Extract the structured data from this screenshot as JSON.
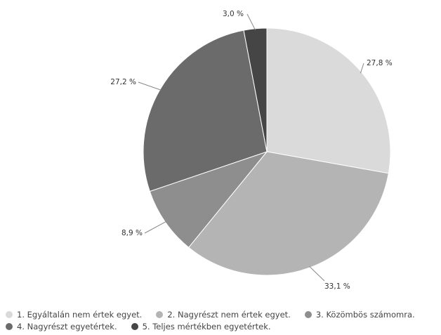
{
  "chart_data": {
    "type": "pie",
    "unit_suffix": " %",
    "slices": [
      {
        "label": "1. Egyáltalán nem értek egyet.",
        "value": 27.8,
        "value_label": "27,8 %",
        "color": "#dadada"
      },
      {
        "label": "2. Nagyrészt nem értek egyet.",
        "value": 33.1,
        "value_label": "33,1 %",
        "color": "#b4b4b4"
      },
      {
        "label": "3. Közömbös számomra.",
        "value": 8.9,
        "value_label": "8,9 %",
        "color": "#8e8e8e"
      },
      {
        "label": "4. Nagyrészt egyetértek.",
        "value": 27.2,
        "value_label": "27,2 %",
        "color": "#6b6b6b"
      },
      {
        "label": "5. Teljes mértékben egyetértek.",
        "value": 3.0,
        "value_label": "3,0 %",
        "color": "#454545"
      }
    ],
    "start_angle": "12 o'clock",
    "direction": "clockwise",
    "legend_placement": "bottom"
  }
}
